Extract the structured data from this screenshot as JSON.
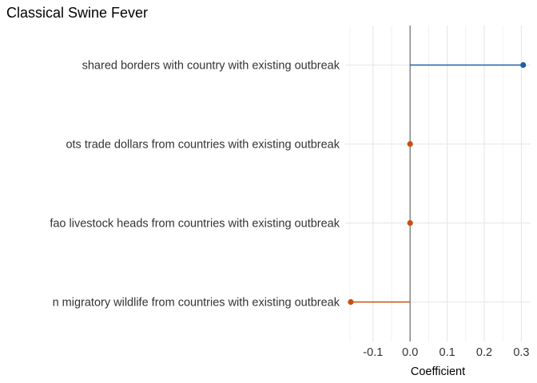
{
  "chart_data": {
    "type": "lollipop",
    "title": "Classical Swine Fever",
    "xlabel": "Coefficient",
    "ylabel": "",
    "xlim": [
      -0.175,
      0.325
    ],
    "xticks": [
      -0.1,
      0.0,
      0.1,
      0.2,
      0.3
    ],
    "xtick_labels": [
      "-0.1",
      "0.0",
      "0.1",
      "0.2",
      "0.3"
    ],
    "reference_line": 0,
    "grid": true,
    "categories": [
      "shared borders with country with existing outbreak",
      "ots trade dollars from countries with existing outbreak",
      "fao livestock heads from countries with existing outbreak",
      "n migratory wildlife from countries with existing outbreak"
    ],
    "values": [
      0.305,
      0.0,
      0.0,
      -0.16
    ],
    "colors": {
      "positive": "#1f5fa8",
      "negative": "#c8500f",
      "zero_line": "#7f7f7f",
      "grid_major": "#e6e6e6",
      "grid_minor": "#f2f2f2"
    }
  }
}
